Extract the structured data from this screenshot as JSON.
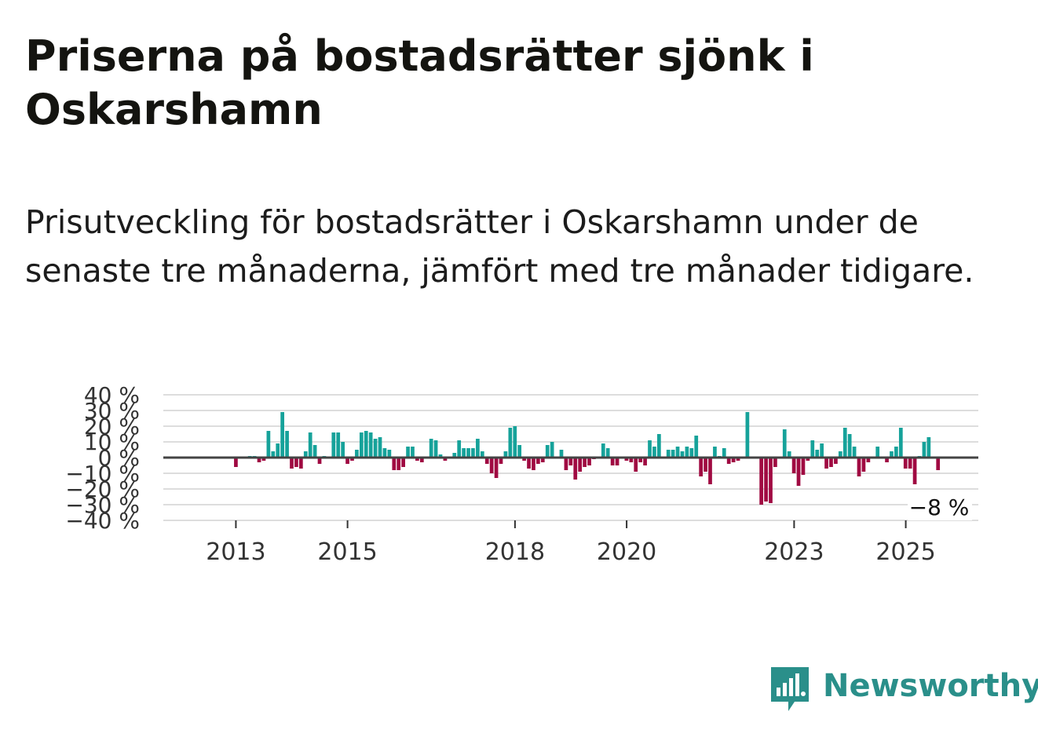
{
  "title": "Priserna på bostadsrätter sjönk i Oskarshamn",
  "subtitle": "Prisutveckling för bostadsrätter i Oskarshamn under de senaste tre månaderna, jämfört med tre månader tidigare.",
  "brand": {
    "name": "Newsworthy",
    "icon": "newsworthy-logo-icon",
    "color": "#2a8f8a"
  },
  "colors": {
    "positive": "#16a29a",
    "negative": "#a00a42",
    "zero_line": "#444444",
    "grid": "#dddddd"
  },
  "chart_data": {
    "type": "bar",
    "title": "Priserna på bostadsrätter sjönk i Oskarshamn",
    "xlabel": "",
    "ylabel": "",
    "unit": "%",
    "ylim": [
      -40,
      40
    ],
    "y_ticks": [
      40,
      30,
      20,
      10,
      0,
      -10,
      -20,
      -30,
      -40
    ],
    "y_tick_labels": [
      "40 %",
      "30 %",
      "20 %",
      "10 %",
      "0 %",
      "−10 %",
      "−20 %",
      "−30 %",
      "−40 %"
    ],
    "x_ticks": [
      {
        "label": "2013",
        "value": 2013.0
      },
      {
        "label": "2015",
        "value": 2015.0
      },
      {
        "label": "2018",
        "value": 2018.0
      },
      {
        "label": "2020",
        "value": 2020.0
      },
      {
        "label": "2023",
        "value": 2023.0
      },
      {
        "label": "2025",
        "value": 2025.0
      }
    ],
    "x_range": [
      2011.7,
      2026.3
    ],
    "start_year": 2013.0,
    "step_years": 0.0833,
    "values": [
      -6,
      0,
      0,
      1,
      1,
      -3,
      -2,
      17,
      4,
      9,
      29,
      17,
      -7,
      -6,
      -7,
      4,
      16,
      8,
      -4,
      1,
      0,
      16,
      16,
      10,
      -4,
      -2,
      5,
      16,
      17,
      16,
      12,
      13,
      6,
      5,
      -8,
      -8,
      -6,
      7,
      7,
      -2,
      -3,
      0,
      12,
      11,
      2,
      -2,
      0,
      3,
      11,
      6,
      6,
      6,
      12,
      4,
      -4,
      -10,
      -13,
      -4,
      4,
      19,
      20,
      8,
      -2,
      -7,
      -8,
      -4,
      -3,
      8,
      10,
      0,
      5,
      -8,
      -5,
      -14,
      -9,
      -6,
      -5,
      -1,
      0,
      9,
      6,
      -5,
      -5,
      0,
      -2,
      -3,
      -9,
      -3,
      -5,
      11,
      7,
      15,
      0,
      5,
      5,
      7,
      4,
      7,
      6,
      14,
      -12,
      -9,
      -17,
      7,
      1,
      6,
      -4,
      -3,
      -2,
      0,
      29,
      0,
      0,
      -30,
      -28,
      -29,
      -6,
      0,
      18,
      4,
      -10,
      -18,
      -11,
      -2,
      11,
      5,
      9,
      -7,
      -6,
      -4,
      4,
      19,
      15,
      7,
      -12,
      -9,
      -3,
      0,
      7,
      0,
      -3,
      4,
      7,
      19,
      -7,
      -7,
      -17,
      1,
      10,
      13,
      0,
      -8
    ]
  },
  "annotation": {
    "text": "−8 %",
    "value": -8
  }
}
